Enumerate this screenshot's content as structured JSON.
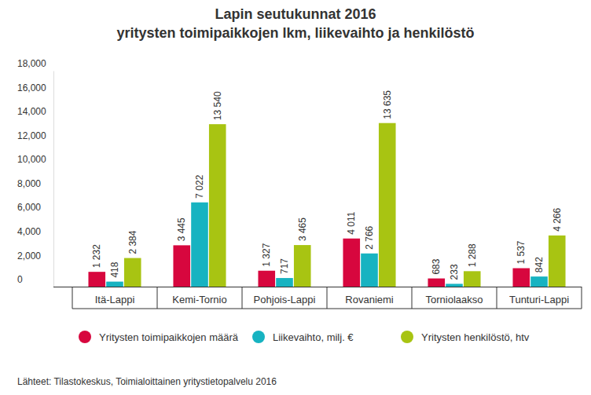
{
  "chart_data": {
    "type": "bar",
    "title": "Lapin seutukunnat 2016",
    "subtitle": "yritysten toimipaikkojen lkm, liikevaihto ja henkilöstö",
    "source": "Lähteet: Tilastokeskus, Toimialoittainen yritystietopalvelu 2016",
    "categories": [
      "Itä-Lappi",
      "Kemi-Tornio",
      "Pohjois-Lappi",
      "Rovaniemi",
      "Torniolaakso",
      "Tunturi-Lappi"
    ],
    "series": [
      {
        "name": "Yritysten toimipaikkojen määrä",
        "color": "#d7073e",
        "values": [
          1232,
          3445,
          1327,
          4011,
          683,
          1537
        ],
        "value_labels": [
          "1 232",
          "3 445",
          "1 327",
          "4 011",
          "683",
          "1 537"
        ]
      },
      {
        "name": "Liikevaihto, milj. €",
        "color": "#17b3c1",
        "values": [
          418,
          7022,
          717,
          2766,
          233,
          842
        ],
        "value_labels": [
          "418",
          "7 022",
          "717",
          "2 766",
          "233",
          "842"
        ]
      },
      {
        "name": "Yritysten henkilöstö, htv",
        "color": "#a8c412",
        "values": [
          2384,
          13540,
          3465,
          13635,
          1288,
          4266
        ],
        "value_labels": [
          "2 384",
          "13 540",
          "3 465",
          "13 635",
          "1 288",
          "4 266"
        ]
      }
    ],
    "ylim": [
      0,
      18000
    ],
    "yticks": [
      0,
      {
        "value": 2000,
        "label": "2,000"
      },
      {
        "value": 4000,
        "label": "4,000"
      },
      {
        "value": 6000,
        "label": "6,000"
      },
      {
        "value": 8000,
        "label": "8,000"
      },
      {
        "value": 10000,
        "label": "10,000"
      },
      {
        "value": 12000,
        "label": "12,000"
      },
      {
        "value": 14000,
        "label": "14,000"
      },
      {
        "value": 16000,
        "label": "16,000"
      },
      {
        "value": 18000,
        "label": "18,000"
      }
    ],
    "grid": false,
    "legend": "bottom",
    "data_labels": true
  }
}
